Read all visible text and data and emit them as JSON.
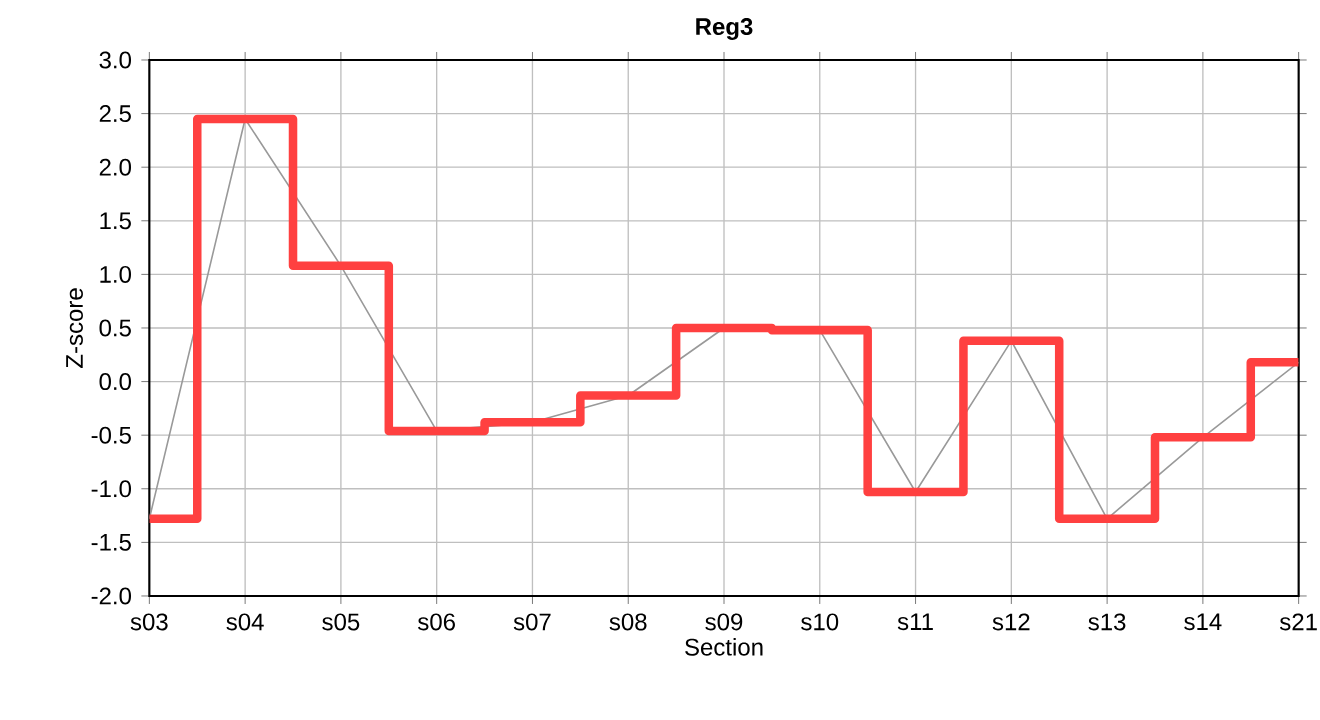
{
  "chart_data": {
    "type": "step",
    "title": "Reg3",
    "xlabel": "Section",
    "ylabel": "Z-score",
    "categories": [
      "s03",
      "s04",
      "s05",
      "s06",
      "s07",
      "s08",
      "s09",
      "s10",
      "s11",
      "s12",
      "s13",
      "s14",
      "s21"
    ],
    "series": [
      {
        "color": "#ff4040",
        "values": [
          -1.28,
          2.45,
          1.08,
          -0.46,
          -0.38,
          -0.13,
          0.5,
          0.48,
          -1.03,
          0.38,
          -1.28,
          -0.52,
          0.18
        ]
      },
      {
        "type": "line",
        "color": "#999999",
        "values": [
          -1.28,
          2.45,
          1.08,
          -0.46,
          -0.38,
          -0.13,
          0.5,
          0.48,
          -1.03,
          0.38,
          -1.28,
          -0.52,
          0.18
        ]
      }
    ],
    "ylim": [
      -2,
      3
    ],
    "yticks": [
      {
        "value": -2,
        "label": "-2.0"
      },
      {
        "value": -1.5,
        "label": "-1.5"
      },
      {
        "value": -1,
        "label": "-1.0"
      },
      {
        "value": -0.5,
        "label": "-0.5"
      },
      {
        "value": 0,
        "label": "0.0"
      },
      {
        "value": 0.5,
        "label": "0.5"
      },
      {
        "value": 1,
        "label": "1.0"
      },
      {
        "value": 1.5,
        "label": "1.5"
      },
      {
        "value": 2,
        "label": "2.0"
      },
      {
        "value": 2.5,
        "label": "2.5"
      },
      {
        "value": 3,
        "label": "3.0"
      }
    ],
    "grid": true,
    "marker": "none"
  }
}
